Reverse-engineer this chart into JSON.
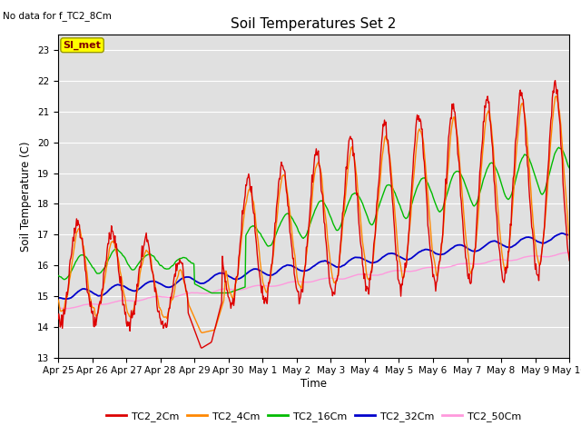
{
  "title": "Soil Temperatures Set 2",
  "top_left_text": "No data for f_TC2_8Cm",
  "ylabel": "Soil Temperature (C)",
  "xlabel": "Time",
  "ylim": [
    13.0,
    23.5
  ],
  "yticks": [
    13.0,
    14.0,
    15.0,
    16.0,
    17.0,
    18.0,
    19.0,
    20.0,
    21.0,
    22.0,
    23.0
  ],
  "bg_color": "#e0e0e0",
  "fig_color": "#ffffff",
  "grid_color": "#ffffff",
  "si_met_label": "SI_met",
  "si_met_color": "#ffff00",
  "si_met_text_color": "#800000",
  "line_colors": {
    "TC2_2Cm": "#dd0000",
    "TC2_4Cm": "#ff8800",
    "TC2_16Cm": "#00bb00",
    "TC2_32Cm": "#0000cc",
    "TC2_50Cm": "#ff99dd"
  },
  "legend_labels": [
    "TC2_2Cm",
    "TC2_4Cm",
    "TC2_16Cm",
    "TC2_32Cm",
    "TC2_50Cm"
  ],
  "xtick_labels": [
    "Apr 25",
    "Apr 26",
    "Apr 27",
    "Apr 28",
    "Apr 29",
    "Apr 30",
    "May 1",
    "May 2",
    "May 3",
    "May 4",
    "May 5",
    "May 6",
    "May 7",
    "May 8",
    "May 9",
    "May 10"
  ],
  "n_points": 720
}
